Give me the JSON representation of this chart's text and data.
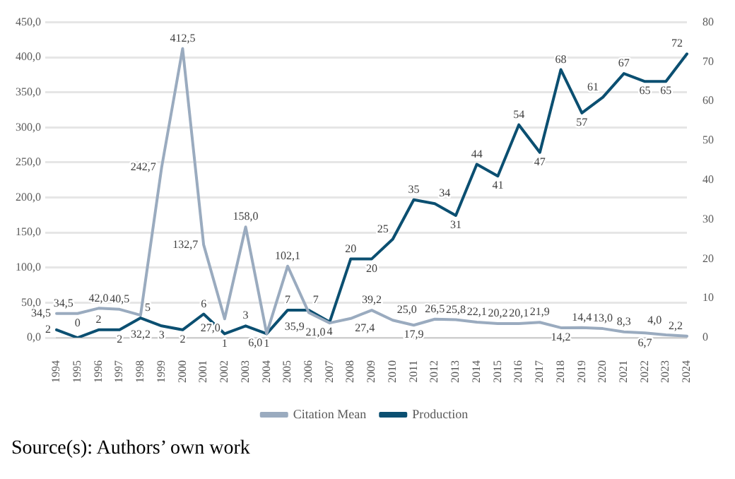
{
  "chart_data": {
    "type": "line",
    "categories": [
      "1994",
      "1995",
      "1996",
      "1997",
      "1998",
      "1999",
      "2000",
      "2001",
      "2002",
      "2003",
      "2004",
      "2005",
      "2006",
      "2007",
      "2008",
      "2009",
      "2010",
      "2011",
      "2012",
      "2013",
      "2014",
      "2015",
      "2016",
      "2017",
      "2018",
      "2019",
      "2020",
      "2021",
      "2022",
      "2023",
      "2024"
    ],
    "series": [
      {
        "name": "Citation Mean",
        "color": "#9aabbf",
        "values": [
          34.5,
          34.5,
          42.0,
          40.5,
          32.2,
          242.7,
          412.5,
          132.7,
          27.0,
          158.0,
          6.0,
          102.1,
          35.9,
          21.0,
          27.4,
          39.2,
          25.0,
          17.9,
          26.5,
          25.8,
          22.1,
          20.2,
          20.1,
          21.9,
          14.2,
          14.4,
          13.0,
          8.3,
          6.7,
          4.0,
          2.2
        ],
        "value_labels": [
          "34,5",
          "34,5",
          "42,0",
          "40,5",
          "32,2",
          "242,7",
          "412,5",
          "132,7",
          "27,0",
          "158,0",
          "6,0",
          "102,1",
          "35,9",
          "21,0",
          "27,4",
          "39,2",
          "25,0",
          "17,9",
          "26,5",
          "25,8",
          "22,1",
          "20,2",
          "20,1",
          "21,9",
          "14,2",
          "14,4",
          "13,0",
          "8,3",
          "6,7",
          "4,0",
          "2,2"
        ]
      },
      {
        "name": "Production",
        "color": "#0b4f71",
        "axis": "y2",
        "values": [
          2,
          0,
          2,
          2,
          5,
          3,
          2,
          6,
          1,
          3,
          1,
          7,
          7,
          4,
          20,
          20,
          25,
          35,
          34,
          31,
          44,
          41,
          54,
          47,
          68,
          57,
          61,
          67,
          65,
          65,
          72
        ],
        "value_labels": [
          "2",
          "0",
          "2",
          "2",
          "5",
          "3",
          "2",
          "6",
          "1",
          "3",
          "1",
          "7",
          "7",
          "4",
          "20",
          "20",
          "25",
          "35",
          "34",
          "31",
          "44",
          "41",
          "54",
          "47",
          "68",
          "57",
          "61",
          "67",
          "65",
          "65",
          "72"
        ]
      }
    ],
    "ylim": [
      0,
      450
    ],
    "yticks": [
      {
        "value": 0,
        "label": "0,0"
      },
      {
        "value": 50,
        "label": "50,0"
      },
      {
        "value": 100,
        "label": "100,0"
      },
      {
        "value": 150,
        "label": "150,0"
      },
      {
        "value": 200,
        "label": "200,0"
      },
      {
        "value": 250,
        "label": "250,0"
      },
      {
        "value": 300,
        "label": "300,0"
      },
      {
        "value": 350,
        "label": "350,0"
      },
      {
        "value": 400,
        "label": "400,0"
      },
      {
        "value": 450,
        "label": "450,0"
      }
    ],
    "y2lim": [
      0,
      80
    ],
    "y2ticks": [
      0,
      10,
      20,
      30,
      40,
      50,
      60,
      70,
      80
    ],
    "grid": "y",
    "legend": "bottom",
    "marker": "none",
    "line_style": "solid",
    "annotations": [
      "Source(s): Authors’ own work"
    ]
  }
}
